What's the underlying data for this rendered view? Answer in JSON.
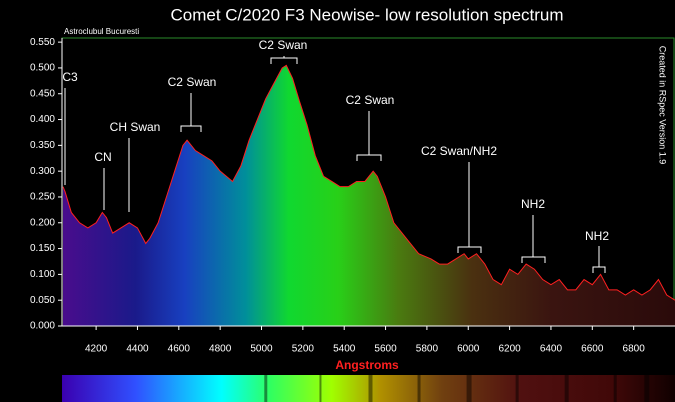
{
  "chart_data": {
    "type": "line",
    "title": "Comet C/2020 F3 Neowise- low resolution spectrum",
    "credit": "Astroclubul Bucuresti",
    "software": "Created in RSpec Version 1.9",
    "xlabel": "Angstroms",
    "color": "#ff2020",
    "grid": false,
    "xlim": [
      4035,
      7000
    ],
    "ylim": [
      0,
      0.558
    ],
    "xticks": [
      4200,
      4400,
      4600,
      4800,
      5000,
      5200,
      5400,
      5600,
      5800,
      6000,
      6200,
      6400,
      6600,
      6800
    ],
    "yticks": [
      {
        "value": 0,
        "label": "0.000"
      },
      {
        "value": 0.05,
        "label": "0.050"
      },
      {
        "value": 0.1,
        "label": "0.100"
      },
      {
        "value": 0.15,
        "label": "0.150"
      },
      {
        "value": 0.2,
        "label": "0.200"
      },
      {
        "value": 0.25,
        "label": "0.250"
      },
      {
        "value": 0.3,
        "label": "0.300"
      },
      {
        "value": 0.35,
        "label": "0.350"
      },
      {
        "value": 0.4,
        "label": "0.400"
      },
      {
        "value": 0.45,
        "label": "0.450"
      },
      {
        "value": 0.5,
        "label": "0.500"
      },
      {
        "value": 0.55,
        "label": "0.550"
      }
    ],
    "x": [
      4040,
      4050,
      4080,
      4120,
      4160,
      4200,
      4230,
      4250,
      4280,
      4320,
      4360,
      4400,
      4440,
      4460,
      4500,
      4540,
      4580,
      4620,
      4640,
      4680,
      4720,
      4760,
      4800,
      4860,
      4900,
      4940,
      4980,
      5020,
      5060,
      5100,
      5120,
      5150,
      5180,
      5220,
      5260,
      5300,
      5340,
      5380,
      5420,
      5460,
      5500,
      5540,
      5560,
      5600,
      5640,
      5700,
      5760,
      5820,
      5860,
      5900,
      5940,
      5980,
      6000,
      6040,
      6080,
      6120,
      6160,
      6200,
      6240,
      6280,
      6320,
      6360,
      6400,
      6440,
      6480,
      6520,
      6560,
      6600,
      6640,
      6680,
      6720,
      6760,
      6800,
      6840,
      6880,
      6920,
      6960,
      7000
    ],
    "values": [
      0.27,
      0.26,
      0.22,
      0.2,
      0.19,
      0.2,
      0.22,
      0.21,
      0.18,
      0.19,
      0.2,
      0.19,
      0.16,
      0.17,
      0.2,
      0.25,
      0.3,
      0.35,
      0.36,
      0.34,
      0.33,
      0.32,
      0.3,
      0.28,
      0.31,
      0.36,
      0.4,
      0.44,
      0.47,
      0.5,
      0.505,
      0.48,
      0.44,
      0.39,
      0.33,
      0.29,
      0.28,
      0.27,
      0.27,
      0.28,
      0.28,
      0.3,
      0.29,
      0.25,
      0.2,
      0.17,
      0.14,
      0.13,
      0.12,
      0.12,
      0.13,
      0.14,
      0.13,
      0.14,
      0.12,
      0.09,
      0.08,
      0.11,
      0.1,
      0.12,
      0.11,
      0.09,
      0.08,
      0.09,
      0.07,
      0.07,
      0.09,
      0.08,
      0.1,
      0.07,
      0.07,
      0.06,
      0.07,
      0.06,
      0.07,
      0.09,
      0.06,
      0.05
    ],
    "annotations": [
      "C3",
      "CN",
      "CH Swan",
      "C2 Swan",
      "C2 Swan",
      "C2 Swan",
      "C2 Swan/NH2",
      "NH2",
      "NH2"
    ]
  }
}
